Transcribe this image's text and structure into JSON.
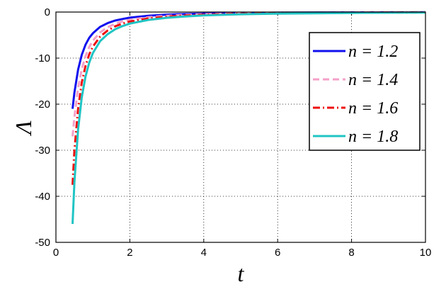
{
  "chart_data": {
    "type": "line",
    "title": "",
    "xlabel": "t",
    "ylabel": "Λ",
    "xlim": [
      0,
      10
    ],
    "ylim": [
      -50,
      0
    ],
    "xticks": [
      "0",
      "2",
      "4",
      "6",
      "8",
      "10"
    ],
    "yticks": [
      "0",
      "-10",
      "-20",
      "-30",
      "-40",
      "-50"
    ],
    "grid": true,
    "legend_position": "top-right",
    "x": [
      0.45,
      0.5,
      0.6,
      0.7,
      0.8,
      0.9,
      1.0,
      1.2,
      1.4,
      1.6,
      1.8,
      2.0,
      2.5,
      3.0,
      3.5,
      4.0,
      5.0,
      6.0,
      8.0,
      10.0
    ],
    "series": [
      {
        "name": "n = 1.2",
        "color": "#1010ee",
        "dash": "solid",
        "values": [
          -21,
          -17.5,
          -12.5,
          -9.3,
          -7.1,
          -5.6,
          -4.6,
          -3.2,
          -2.4,
          -1.85,
          -1.5,
          -1.22,
          -0.8,
          -0.56,
          -0.42,
          -0.32,
          -0.2,
          -0.14,
          -0.08,
          -0.05
        ]
      },
      {
        "name": "n = 1.4",
        "color": "#f4a0c8",
        "dash": "dashed",
        "values": [
          -27,
          -22.8,
          -16.5,
          -12.4,
          -9.6,
          -7.6,
          -6.2,
          -4.4,
          -3.3,
          -2.55,
          -2.05,
          -1.68,
          -1.12,
          -0.8,
          -0.6,
          -0.46,
          -0.29,
          -0.2,
          -0.11,
          -0.07
        ]
      },
      {
        "name": "n = 1.6",
        "color": "#ee1010",
        "dash": "dashdot",
        "values": [
          -37.5,
          -30,
          -21,
          -15.3,
          -11.7,
          -9.2,
          -7.5,
          -5.3,
          -4,
          -3.1,
          -2.5,
          -2.05,
          -1.38,
          -1,
          -0.75,
          -0.58,
          -0.37,
          -0.26,
          -0.15,
          -0.09
        ]
      },
      {
        "name": "n = 1.8",
        "color": "#20c4c4",
        "dash": "solid",
        "values": [
          -46,
          -37,
          -25.5,
          -18.5,
          -14,
          -11,
          -8.9,
          -6.3,
          -4.8,
          -3.75,
          -3.05,
          -2.5,
          -1.7,
          -1.25,
          -0.95,
          -0.74,
          -0.48,
          -0.34,
          -0.19,
          -0.12
        ]
      }
    ]
  }
}
